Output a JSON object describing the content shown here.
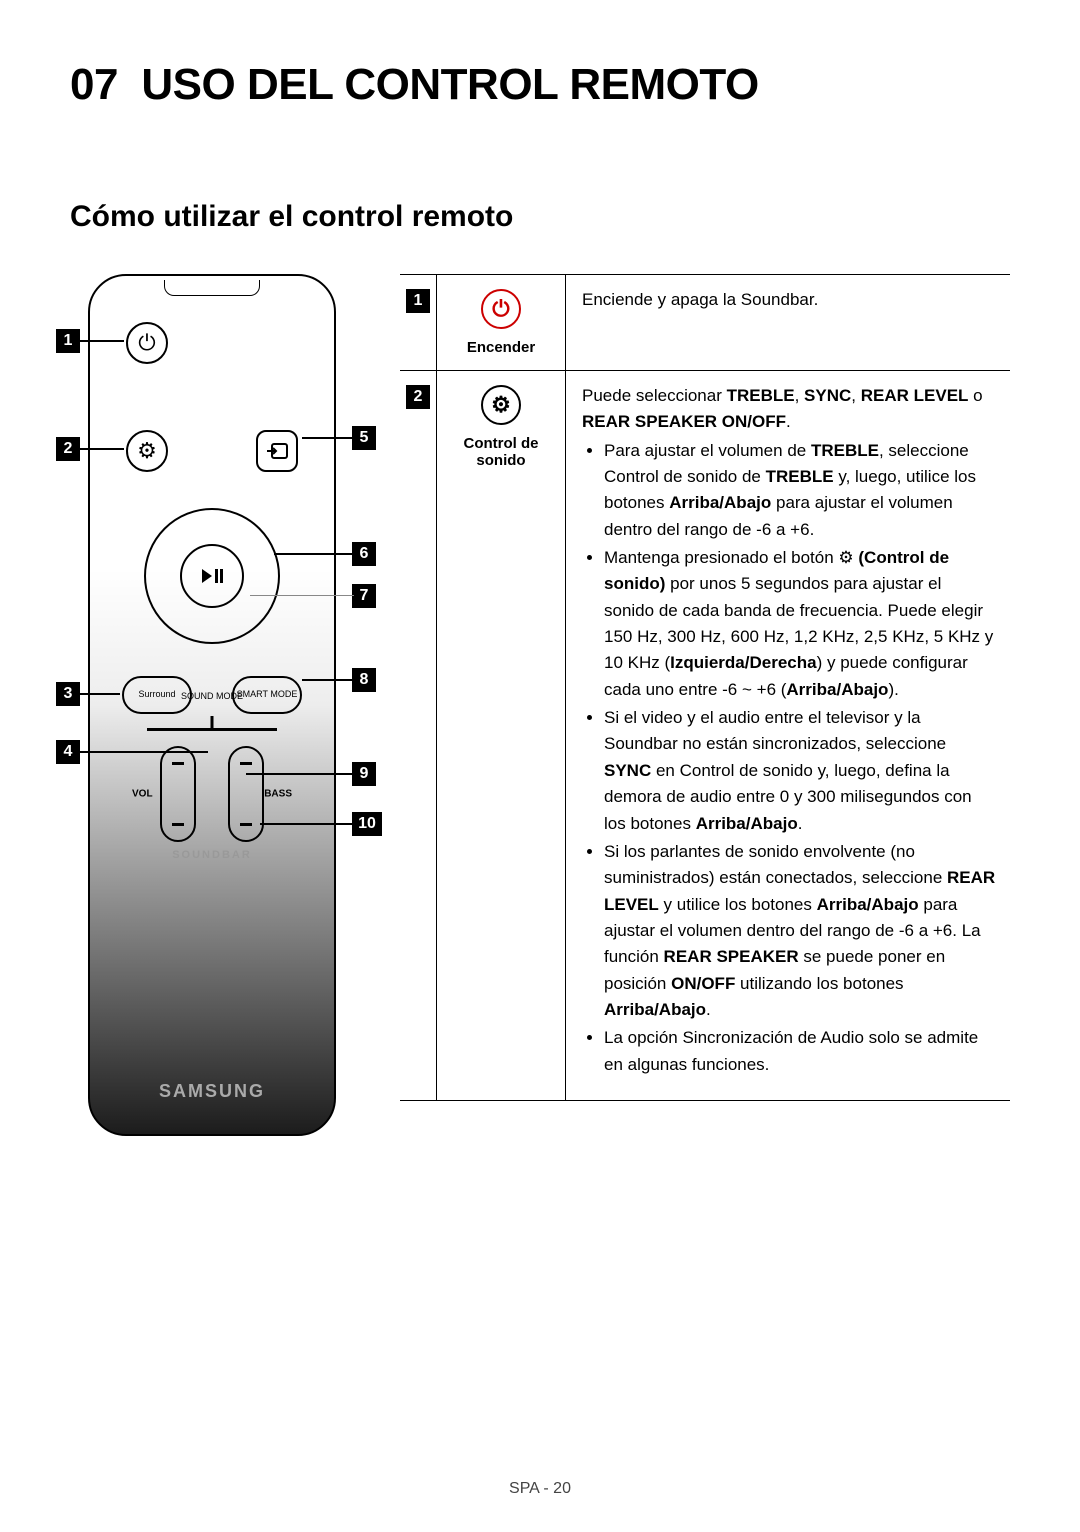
{
  "section_number": "07",
  "section_title": "USO DEL CONTROL REMOTO",
  "subsection": "Cómo utilizar el control remoto",
  "remote": {
    "surround": "Surround",
    "smart": "SMART\nMODE",
    "sound_mode": "SOUND\nMODE",
    "vol": "VOL",
    "bass": "BASS",
    "soundbar": "SOUNDBAR",
    "brand": "SAMSUNG",
    "callouts": [
      "1",
      "2",
      "3",
      "4",
      "5",
      "6",
      "7",
      "8",
      "9",
      "10"
    ]
  },
  "rows": [
    {
      "num": "1",
      "icon_label": "Encender",
      "icon_glyph": "⏻",
      "desc_html": "Enciende y apaga la Soundbar."
    },
    {
      "num": "2",
      "icon_label": "Control de sonido",
      "icon_glyph": "⚙",
      "desc_html": "Puede seleccionar <b>TREBLE</b>, <b>SYNC</b>, <b>REAR LEVEL</b> o <b>REAR SPEAKER ON/OFF</b>.<ul><li>Para ajustar el volumen de <b>TREBLE</b>, seleccione Control de sonido de <b>TREBLE</b> y, luego, utilice los botones <b>Arriba/Abajo</b> para ajustar el volumen dentro del rango de -6 a +6.</li><li>Mantenga presionado el botón ⚙ <b>(Control de sonido)</b> por unos 5 segundos para ajustar el sonido de cada banda de frecuencia. Puede elegir 150 Hz, 300 Hz, 600 Hz, 1,2 KHz, 2,5 KHz, 5 KHz y 10 KHz (<b>Izquierda/Derecha</b>) y puede configurar cada uno entre -6 ~ +6 (<b>Arriba/Abajo</b>).</li><li>Si el video y el audio entre el televisor y la Soundbar no están sincronizados, seleccione <b>SYNC</b> en Control de sonido y, luego, defina la demora de audio entre 0 y 300 milisegundos con los botones <b>Arriba/Abajo</b>.</li><li>Si los parlantes de sonido envolvente (no suministrados) están conectados, seleccione <b>REAR LEVEL</b> y utilice los botones <b>Arriba/Abajo</b> para ajustar el volumen dentro del rango de -6 a +6. La función <b>REAR SPEAKER</b> se puede poner en posición <b>ON/OFF</b> utilizando los botones <b>Arriba/Abajo</b>.</li><li>La opción Sincronización de Audio solo se admite en algunas funciones.</li></ul>"
    }
  ],
  "footer": "SPA - 20"
}
